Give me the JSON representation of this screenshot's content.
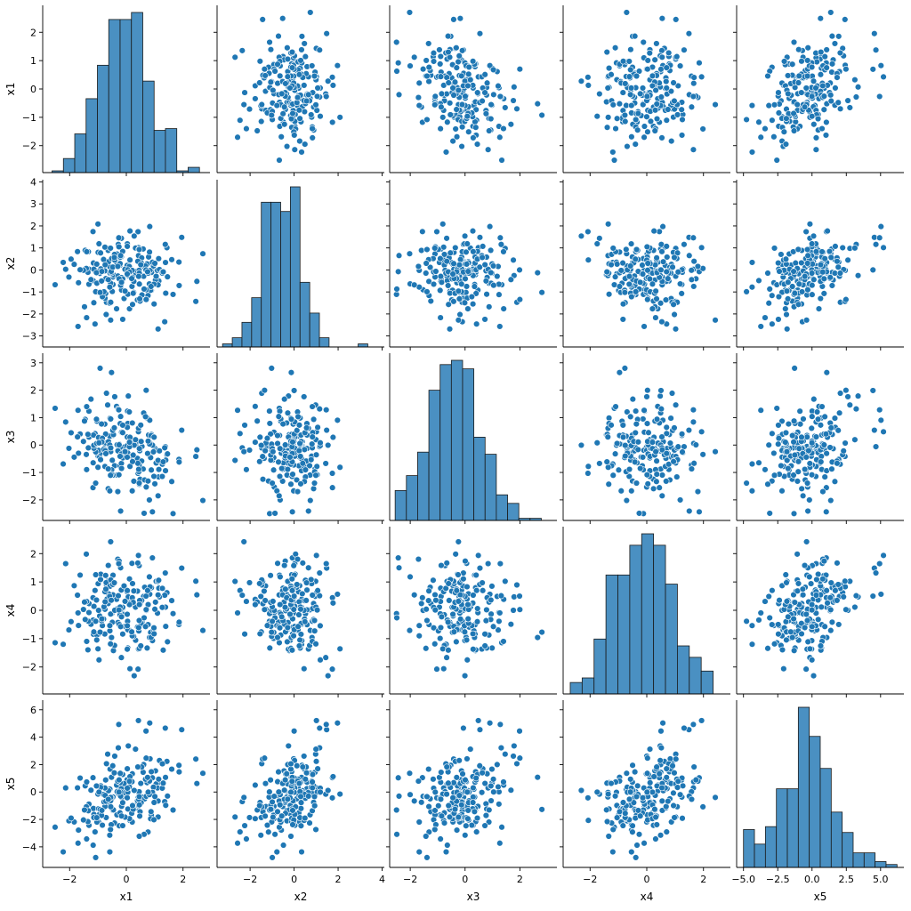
{
  "chart_data": {
    "type": "scatter",
    "variables": [
      "x1",
      "x2",
      "x3",
      "x4",
      "x5"
    ],
    "colors": {
      "marker": "#1f77b4",
      "bar": "#4a90c2",
      "bar_edge": "#1a1a1a"
    },
    "axes": {
      "x1": {
        "range": [
          -2.95,
          2.95
        ],
        "ticks": [
          -2,
          0,
          2
        ],
        "tick_labels": [
          "−2",
          "0",
          "2"
        ]
      },
      "x2": {
        "range": [
          -3.5,
          4.1
        ],
        "ticks": [
          -2,
          0,
          2,
          4
        ],
        "tick_labels": [
          "−2",
          "0",
          "2",
          "4"
        ]
      },
      "x3": {
        "range": [
          -2.75,
          3.35
        ],
        "ticks": [
          -2,
          0,
          2
        ],
        "tick_labels": [
          "−2",
          "0",
          "2"
        ]
      },
      "x4": {
        "range": [
          -2.95,
          2.95
        ],
        "ticks": [
          -2,
          0,
          2
        ],
        "tick_labels": [
          "−2",
          "0",
          "2"
        ]
      },
      "x5": {
        "range": [
          -5.5,
          6.7
        ],
        "ticks": [
          -5,
          -2.5,
          0,
          2.5,
          5
        ],
        "tick_labels": [
          "−5.0",
          "−2.5",
          "0.0",
          "2.5",
          "5.0"
        ]
      }
    },
    "y_axes": {
      "x1": {
        "range": [
          -2.95,
          2.95
        ],
        "ticks": [
          -2,
          -1,
          0,
          1,
          2
        ],
        "tick_labels": [
          "−2",
          "−1",
          "0",
          "1",
          "2"
        ]
      },
      "x2": {
        "range": [
          -3.5,
          4.1
        ],
        "ticks": [
          -3,
          -2,
          -1,
          0,
          1,
          2,
          3,
          4
        ],
        "tick_labels": [
          "−3",
          "−2",
          "−1",
          "0",
          "1",
          "2",
          "3",
          "4"
        ]
      },
      "x3": {
        "range": [
          -2.75,
          3.35
        ],
        "ticks": [
          -2,
          -1,
          0,
          1,
          2,
          3
        ],
        "tick_labels": [
          "−2",
          "−1",
          "0",
          "1",
          "2",
          "3"
        ]
      },
      "x4": {
        "range": [
          -2.95,
          2.95
        ],
        "ticks": [
          -2,
          -1,
          0,
          1,
          2
        ],
        "tick_labels": [
          "−2",
          "−1",
          "0",
          "1",
          "2"
        ]
      },
      "x5": {
        "range": [
          -5.5,
          6.7
        ],
        "ticks": [
          -4,
          -2,
          0,
          2,
          4,
          6
        ],
        "tick_labels": [
          "−4",
          "−2",
          "0",
          "2",
          "4",
          "6"
        ]
      }
    },
    "histograms": {
      "x1": {
        "bin_start": -2.62,
        "bin_width": 0.4,
        "counts": [
          1,
          8,
          22,
          42,
          61,
          87,
          87,
          91,
          52,
          24,
          25,
          1,
          3
        ]
      },
      "x2": {
        "bin_start": -3.25,
        "bin_width": 0.44,
        "counts": [
          1,
          3,
          8,
          16,
          47,
          47,
          44,
          52,
          21,
          11,
          3,
          0,
          0,
          0,
          1
        ]
      },
      "x3": {
        "bin_start": -2.55,
        "bin_width": 0.41,
        "counts": [
          14,
          21,
          32,
          61,
          73,
          75,
          71,
          39,
          31,
          12,
          8,
          1,
          1
        ]
      },
      "x4": {
        "bin_start": -2.7,
        "bin_width": 0.42,
        "counts": [
          5,
          7,
          24,
          52,
          52,
          65,
          70,
          65,
          48,
          21,
          16,
          10
        ]
      },
      "x5": {
        "bin_start": -5.0,
        "bin_width": 0.8,
        "counts": [
          13,
          8,
          14,
          27,
          27,
          55,
          45,
          34,
          19,
          12,
          5,
          5,
          2,
          1
        ]
      }
    },
    "n_points": 200,
    "correlations": [
      [
        1.0,
        0.0,
        -0.15,
        0.0,
        0.45
      ],
      [
        0.0,
        1.0,
        0.0,
        -0.1,
        0.45
      ],
      [
        -0.15,
        0.0,
        1.0,
        0.0,
        0.45
      ],
      [
        0.0,
        -0.1,
        0.0,
        1.0,
        0.5
      ],
      [
        0.45,
        0.45,
        0.45,
        0.5,
        1.0
      ]
    ],
    "grid": false,
    "legend": "none"
  }
}
